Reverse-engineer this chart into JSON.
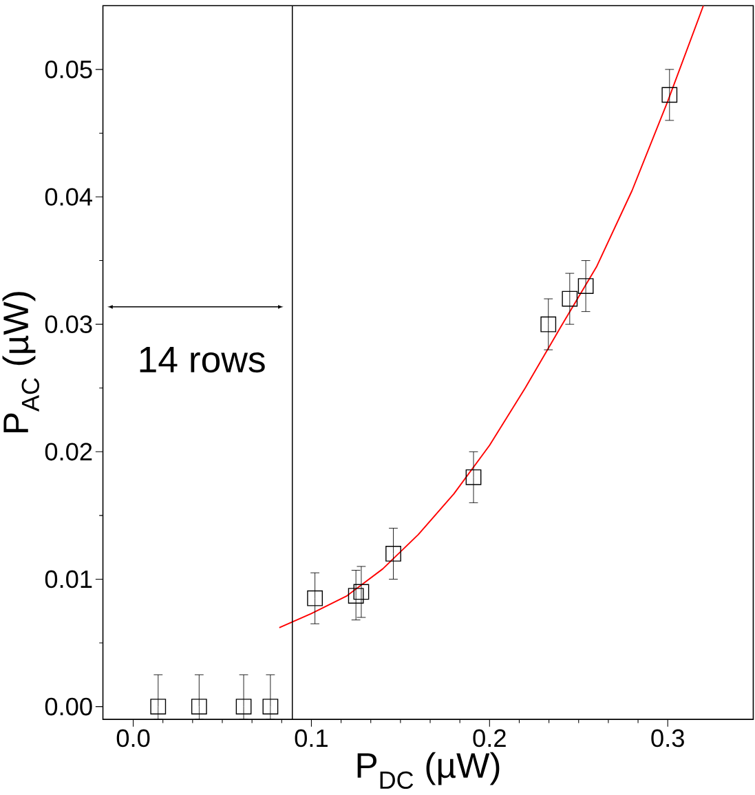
{
  "chart_data": {
    "type": "scatter",
    "xlabel": "P$_{DC}$ (µW)",
    "ylabel": "P$_{AC}$ (µW)",
    "xlim": [
      -0.017,
      0.348
    ],
    "ylim": [
      -0.001,
      0.055
    ],
    "xticks": [
      {
        "value": 0,
        "label": "0.0"
      },
      {
        "value": 0.1,
        "label": "0.1"
      },
      {
        "value": 0.2,
        "label": "0.2"
      },
      {
        "value": 0.3,
        "label": "0.3"
      }
    ],
    "yticks": [
      {
        "value": 0,
        "label": "0.00"
      },
      {
        "value": 0.01,
        "label": "0.01"
      },
      {
        "value": 0.02,
        "label": "0.02"
      },
      {
        "value": 0.03,
        "label": "0.03"
      },
      {
        "value": 0.04,
        "label": "0.04"
      },
      {
        "value": 0.05,
        "label": "0.05"
      }
    ],
    "grid": false,
    "series": [
      {
        "color": "#000000",
        "marker": "square",
        "x": [
          0.014,
          0.037,
          0.062,
          0.077,
          0.102,
          0.125,
          0.128,
          0.146,
          0.191,
          0.233,
          0.245,
          0.254,
          0.301
        ],
        "values": [
          0,
          0,
          0,
          0,
          0.0085,
          0.0087,
          0.009,
          0.012,
          0.018,
          0.03,
          0.032,
          0.033,
          0.048
        ],
        "errors": [
          [
            -0.001,
            0.0025
          ],
          [
            -0.001,
            0.0025
          ],
          [
            -0.001,
            0.0025
          ],
          [
            -0.001,
            0.0025
          ],
          [
            0.0065,
            0.0105
          ],
          [
            0.0068,
            0.0107
          ],
          [
            0.007,
            0.011
          ],
          [
            0.01,
            0.014
          ],
          [
            0.016,
            0.02
          ],
          [
            0.028,
            0.032
          ],
          [
            0.03,
            0.034
          ],
          [
            0.031,
            0.035
          ],
          [
            0.046,
            0.05
          ]
        ]
      },
      {
        "type": "line",
        "color": "#ff0000",
        "marker": "none",
        "line_style": "solid",
        "x": [
          0.082,
          0.1,
          0.12,
          0.14,
          0.16,
          0.18,
          0.2,
          0.22,
          0.24,
          0.26,
          0.28,
          0.3,
          0.32
        ],
        "values": [
          0.0062,
          0.0073,
          0.0087,
          0.0108,
          0.0135,
          0.0167,
          0.0205,
          0.025,
          0.0298,
          0.0345,
          0.0405,
          0.0475,
          0.055
        ]
      }
    ],
    "ref_lines": [
      {
        "axis": "x",
        "value": 0.0893,
        "color": "#000000",
        "line_style": "solid"
      }
    ],
    "annotations": [
      "14 rows"
    ]
  }
}
